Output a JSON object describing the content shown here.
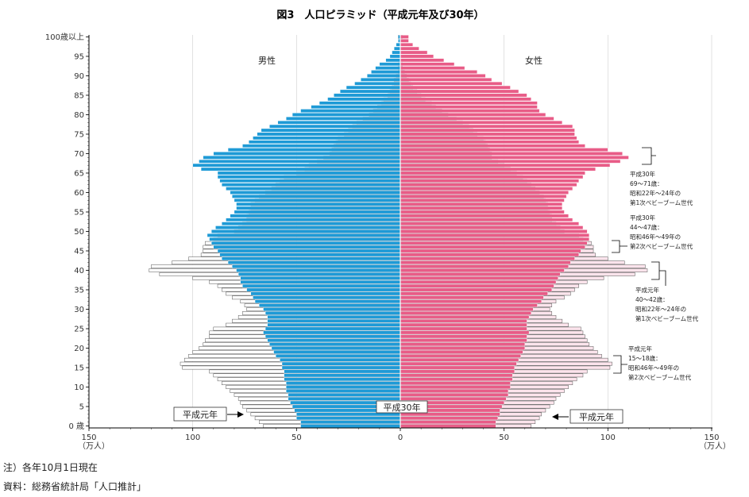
{
  "chart_data": {
    "type": "bar",
    "subtype": "population-pyramid",
    "title": "図3　人口ピラミッド（平成元年及び30年）",
    "unit_label": "（万人）",
    "x_ticks": [
      "150",
      "100",
      "50",
      "0",
      "50",
      "100",
      "150"
    ],
    "xlim": [
      0,
      150
    ],
    "y_ticks": [
      "0 歳",
      "5",
      "10",
      "15",
      "20",
      "25",
      "30",
      "35",
      "40",
      "45",
      "50",
      "55",
      "60",
      "65",
      "70",
      "75",
      "80",
      "85",
      "90",
      "95",
      "100歳以上"
    ],
    "ages": [
      0,
      1,
      2,
      3,
      4,
      5,
      6,
      7,
      8,
      9,
      10,
      11,
      12,
      13,
      14,
      15,
      16,
      17,
      18,
      19,
      20,
      21,
      22,
      23,
      24,
      25,
      26,
      27,
      28,
      29,
      30,
      31,
      32,
      33,
      34,
      35,
      36,
      37,
      38,
      39,
      40,
      41,
      42,
      43,
      44,
      45,
      46,
      47,
      48,
      49,
      50,
      51,
      52,
      53,
      54,
      55,
      56,
      57,
      58,
      59,
      60,
      61,
      62,
      63,
      64,
      65,
      66,
      67,
      68,
      69,
      70,
      71,
      72,
      73,
      74,
      75,
      76,
      77,
      78,
      79,
      80,
      81,
      82,
      83,
      84,
      85,
      86,
      87,
      88,
      89,
      90,
      91,
      92,
      93,
      94,
      95,
      96,
      97,
      98,
      99,
      100
    ],
    "side_labels": {
      "male": "男性",
      "female": "女性"
    },
    "series": [
      {
        "name": "平成30年",
        "sex": "male",
        "color": "#1e9ad6",
        "values": [
          48,
          48,
          50,
          50,
          51,
          52,
          53,
          54,
          54,
          55,
          55,
          55,
          56,
          56,
          56,
          57,
          57,
          58,
          60,
          61,
          62,
          63,
          64,
          65,
          66,
          65,
          64,
          64,
          64,
          65,
          66,
          68,
          70,
          71,
          72,
          74,
          76,
          77,
          77,
          78,
          79,
          81,
          83,
          86,
          87,
          88,
          90,
          91,
          92,
          93,
          91,
          89,
          86,
          84,
          82,
          80,
          79,
          79,
          80,
          81,
          82,
          84,
          86,
          87,
          88,
          88,
          96,
          100,
          97,
          95,
          90,
          83,
          76,
          73,
          71,
          69,
          67,
          63,
          59,
          55,
          52,
          48,
          43,
          39,
          35,
          32,
          29,
          26,
          22,
          19,
          16,
          14,
          12,
          10,
          7,
          5,
          4,
          3,
          2,
          1,
          1
        ]
      },
      {
        "name": "平成30年",
        "sex": "female",
        "color": "#e85c87",
        "values": [
          46,
          46,
          47,
          48,
          48,
          49,
          50,
          51,
          52,
          52,
          53,
          53,
          54,
          54,
          55,
          55,
          56,
          57,
          58,
          59,
          60,
          60,
          61,
          61,
          62,
          61,
          61,
          61,
          62,
          63,
          64,
          66,
          68,
          69,
          71,
          73,
          74,
          75,
          76,
          77,
          79,
          81,
          82,
          84,
          86,
          87,
          89,
          90,
          91,
          91,
          90,
          88,
          86,
          83,
          81,
          79,
          78,
          78,
          79,
          80,
          81,
          83,
          85,
          86,
          88,
          89,
          94,
          101,
          106,
          110,
          107,
          100,
          89,
          86,
          85,
          84,
          84,
          83,
          78,
          74,
          70,
          67,
          66,
          66,
          63,
          61,
          57,
          53,
          49,
          44,
          41,
          37,
          31,
          26,
          21,
          16,
          13,
          9,
          6,
          4,
          4
        ]
      },
      {
        "name": "平成元年",
        "sex": "male",
        "color": "#ffffff",
        "values": [
          66,
          68,
          70,
          72,
          74,
          76,
          77,
          78,
          80,
          82,
          84,
          86,
          88,
          90,
          92,
          105,
          106,
          104,
          102,
          100,
          97,
          95,
          94,
          92,
          92,
          90,
          84,
          81,
          78,
          76,
          74,
          75,
          77,
          81,
          84,
          86,
          88,
          92,
          100,
          116,
          121,
          120,
          110,
          102,
          96,
          95,
          95,
          94,
          90,
          88,
          80,
          78,
          76,
          74,
          74,
          73,
          72,
          72,
          70,
          68,
          65,
          62,
          60,
          58,
          56,
          50,
          46,
          44,
          40,
          37,
          34,
          33,
          32,
          31,
          30,
          27,
          25,
          23,
          21,
          18,
          15,
          13,
          11,
          9,
          8,
          6,
          5,
          4,
          3,
          3,
          2,
          1,
          1,
          1,
          0,
          0,
          0,
          0,
          0,
          0,
          1
        ]
      },
      {
        "name": "平成元年",
        "sex": "female",
        "color": "#fce4ec",
        "values": [
          63,
          65,
          67,
          68,
          70,
          72,
          74,
          75,
          77,
          79,
          81,
          83,
          85,
          88,
          90,
          101,
          102,
          100,
          97,
          95,
          93,
          91,
          90,
          89,
          88,
          87,
          81,
          78,
          75,
          73,
          72,
          73,
          75,
          79,
          82,
          84,
          86,
          90,
          98,
          113,
          119,
          118,
          108,
          100,
          94,
          93,
          93,
          92,
          88,
          86,
          79,
          77,
          75,
          73,
          73,
          72,
          71,
          71,
          70,
          69,
          67,
          65,
          63,
          61,
          59,
          56,
          53,
          50,
          47,
          44,
          44,
          43,
          42,
          41,
          40,
          37,
          35,
          33,
          30,
          27,
          23,
          20,
          17,
          15,
          12,
          10,
          8,
          6,
          5,
          4,
          3,
          2,
          1,
          1,
          0,
          0,
          0,
          0,
          0,
          0,
          1
        ]
      }
    ],
    "legend_labels": {
      "left_old": "平成元年",
      "center_new": "平成30年",
      "right_old": "平成元年"
    },
    "annotations": [
      {
        "lines": [
          "平成30年",
          "69～71歳：",
          "昭和22年～24年の",
          "第1次ベビーブーム世代"
        ]
      },
      {
        "lines": [
          "平成30年",
          "44～47歳：",
          "昭和46年～49年の",
          "第2次ベビーブーム世代"
        ]
      },
      {
        "lines": [
          "平成元年",
          "40～42歳：",
          "昭和22年～24年の",
          "第1次ベビーブーム世代"
        ]
      },
      {
        "lines": [
          "平成元年",
          "15～18歳：",
          "昭和46年～49年の",
          "第2次ベビーブーム世代"
        ]
      }
    ]
  },
  "notes": {
    "note": "注）各年10月1日現在",
    "source": "資料：総務省統計局「人口推計」"
  }
}
